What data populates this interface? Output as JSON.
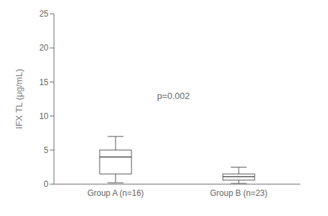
{
  "chart_data": {
    "type": "box",
    "categories": [
      "Group A (n=16)",
      "Group B (n=23)"
    ],
    "boxes": [
      {
        "med": 4.0,
        "q1": 1.5,
        "q3": 5.0,
        "whislo": 0.2,
        "whishi": 7.0
      },
      {
        "med": 1.1,
        "q1": 0.6,
        "q3": 1.5,
        "whislo": 0.1,
        "whishi": 2.5
      }
    ],
    "ylabel": "IFX TL (μg/mL)",
    "ylim": [
      0,
      25
    ],
    "yticks": [
      0,
      5,
      10,
      15,
      20,
      25
    ],
    "color": "#555555",
    "annotations": [
      {
        "text": "p=0.002",
        "color": "#666666"
      }
    ]
  }
}
